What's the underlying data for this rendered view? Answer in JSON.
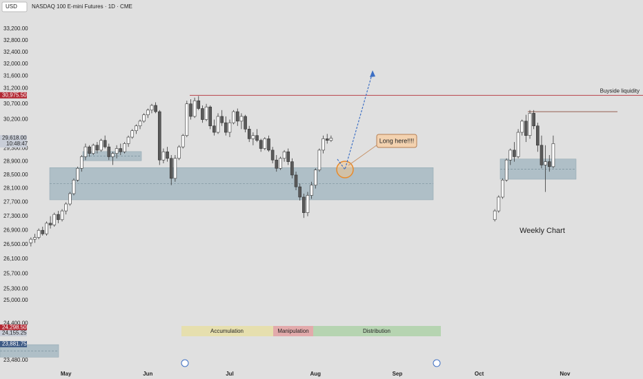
{
  "chart_data": {
    "type": "candlestick",
    "title": "NASDAQ 100 E-mini Futures · 1D · CME",
    "currency": "USD",
    "log_scale": true,
    "grid": false,
    "up_color": "#ffffff",
    "down_color": "#5a5a5a",
    "wick_color": "#333333",
    "ylim": [
      23480,
      33200
    ],
    "yticks": [
      {
        "value": 33200,
        "label": "33,200.00"
      },
      {
        "value": 32800,
        "label": "32,800.00"
      },
      {
        "value": 32400,
        "label": "32,400.00"
      },
      {
        "value": 32000,
        "label": "32,000.00"
      },
      {
        "value": 31600,
        "label": "31,600.00"
      },
      {
        "value": 31200,
        "label": "31,200.00"
      },
      {
        "value": 30700,
        "label": "30,700.00"
      },
      {
        "value": 30200,
        "label": "30,200.00"
      },
      {
        "value": 29300,
        "label": "29,300.00"
      },
      {
        "value": 28900,
        "label": "28,900.00"
      },
      {
        "value": 28500,
        "label": "28,500.00"
      },
      {
        "value": 28100,
        "label": "28,100.00"
      },
      {
        "value": 27700,
        "label": "27,700.00"
      },
      {
        "value": 27300,
        "label": "27,300.00"
      },
      {
        "value": 26900,
        "label": "26,900.00"
      },
      {
        "value": 26500,
        "label": "26,500.00"
      },
      {
        "value": 26100,
        "label": "26,100.00"
      },
      {
        "value": 25700,
        "label": "25,700.00"
      },
      {
        "value": 25300,
        "label": "25,300.00"
      },
      {
        "value": 25000,
        "label": "25,000.00"
      },
      {
        "value": 24400,
        "label": "24,400.00"
      },
      {
        "value": 23480,
        "label": "23,480.00"
      }
    ],
    "categories": [
      null,
      null,
      null,
      null,
      null,
      null,
      null,
      null,
      null,
      "May",
      null,
      null,
      null,
      null,
      null,
      null,
      null,
      null,
      null,
      null,
      null,
      null,
      null,
      null,
      null,
      null,
      null,
      null,
      null,
      null,
      "Jun",
      null,
      null,
      null,
      null,
      null,
      null,
      null,
      null,
      null,
      null,
      null,
      null,
      null,
      null,
      null,
      null,
      null,
      null,
      null,
      null,
      "Jul",
      null,
      null,
      null,
      null,
      null,
      null,
      null,
      null,
      null,
      null,
      null,
      null,
      null,
      null,
      null,
      null,
      null,
      null,
      null,
      null,
      null,
      "Aug",
      null,
      null,
      null,
      null,
      null,
      null,
      null,
      null,
      null,
      null,
      null,
      null,
      null,
      null,
      null,
      null,
      null,
      null,
      null,
      null,
      "Sep",
      null,
      null,
      null,
      null,
      null,
      null,
      null,
      null,
      null,
      null,
      null,
      null,
      null,
      null,
      null,
      null,
      null,
      null,
      null,
      null,
      "Oct",
      null,
      null,
      null,
      null,
      null,
      null,
      null,
      null,
      null,
      null,
      null,
      null,
      null,
      null,
      null,
      null,
      null,
      null,
      null,
      null,
      null,
      "Nov",
      null,
      null,
      null,
      null,
      null,
      null,
      null,
      null,
      null,
      null,
      null,
      null,
      null,
      null,
      null,
      null,
      null,
      null
    ],
    "candles": [
      [
        26550,
        26700,
        26450,
        26650
      ],
      [
        26650,
        26800,
        26550,
        26700
      ],
      [
        26700,
        26950,
        26650,
        26900
      ],
      [
        26900,
        27000,
        26750,
        26800
      ],
      [
        26800,
        27150,
        26750,
        27100
      ],
      [
        27100,
        27300,
        26950,
        27050
      ],
      [
        27050,
        27400,
        27000,
        27350
      ],
      [
        27350,
        27450,
        27100,
        27200
      ],
      [
        27200,
        27500,
        27150,
        27450
      ],
      [
        27450,
        27700,
        27350,
        27650
      ],
      [
        27650,
        28000,
        27600,
        27950
      ],
      [
        27950,
        28400,
        27900,
        28350
      ],
      [
        28350,
        28750,
        28300,
        28700
      ],
      [
        28700,
        29100,
        28600,
        29050
      ],
      [
        29050,
        29450,
        28950,
        29350
      ],
      [
        29350,
        29400,
        29050,
        29150
      ],
      [
        29150,
        29450,
        29100,
        29400
      ],
      [
        29400,
        29500,
        29150,
        29250
      ],
      [
        29250,
        29600,
        29200,
        29550
      ],
      [
        29550,
        29700,
        29300,
        29350
      ],
      [
        29350,
        29450,
        28950,
        29050
      ],
      [
        29050,
        29200,
        28800,
        29150
      ],
      [
        29150,
        29400,
        29000,
        29300
      ],
      [
        29300,
        29450,
        29100,
        29200
      ],
      [
        29200,
        29500,
        29150,
        29450
      ],
      [
        29450,
        29700,
        29350,
        29650
      ],
      [
        29650,
        29900,
        29600,
        29850
      ],
      [
        29850,
        30050,
        29750,
        30000
      ],
      [
        30000,
        30200,
        29900,
        30150
      ],
      [
        30150,
        30400,
        30100,
        30350
      ],
      [
        30350,
        30550,
        30250,
        30500
      ],
      [
        30500,
        30700,
        30400,
        30650
      ],
      [
        30650,
        30750,
        30400,
        30450
      ],
      [
        30450,
        30500,
        28800,
        28950
      ],
      [
        28950,
        29300,
        28850,
        29200
      ],
      [
        29200,
        29350,
        28900,
        29000
      ],
      [
        29000,
        29100,
        28200,
        28400
      ],
      [
        28400,
        29100,
        28300,
        29000
      ],
      [
        29000,
        29400,
        28950,
        29350
      ],
      [
        29350,
        29750,
        29300,
        29700
      ],
      [
        29700,
        30800,
        29650,
        30700
      ],
      [
        30700,
        30850,
        30200,
        30300
      ],
      [
        30300,
        30900,
        30250,
        30800
      ],
      [
        30800,
        30950,
        30500,
        30550
      ],
      [
        30550,
        30650,
        30100,
        30200
      ],
      [
        30200,
        30700,
        30150,
        30600
      ],
      [
        30600,
        30650,
        29900,
        30000
      ],
      [
        30000,
        30200,
        29700,
        29800
      ],
      [
        29800,
        30400,
        29750,
        30300
      ],
      [
        30300,
        30500,
        30000,
        30100
      ],
      [
        30100,
        30300,
        29700,
        29800
      ],
      [
        29800,
        30200,
        29650,
        30100
      ],
      [
        30100,
        30500,
        30050,
        30450
      ],
      [
        30450,
        30550,
        30000,
        30150
      ],
      [
        30150,
        30400,
        29900,
        30300
      ],
      [
        30300,
        30350,
        29800,
        29900
      ],
      [
        29900,
        30000,
        29500,
        29600
      ],
      [
        29600,
        29800,
        29400,
        29700
      ],
      [
        29700,
        29900,
        29500,
        29550
      ],
      [
        29550,
        29600,
        29200,
        29300
      ],
      [
        29300,
        29650,
        29250,
        29600
      ],
      [
        29600,
        29700,
        29200,
        29250
      ],
      [
        29250,
        29350,
        28850,
        28950
      ],
      [
        28950,
        29100,
        28600,
        28700
      ],
      [
        28700,
        29050,
        28650,
        29000
      ],
      [
        29000,
        29250,
        28900,
        29200
      ],
      [
        29200,
        29300,
        28800,
        28900
      ],
      [
        28900,
        29000,
        28400,
        28500
      ],
      [
        28500,
        28600,
        28050,
        28150
      ],
      [
        28150,
        28250,
        27750,
        27850
      ],
      [
        27850,
        27950,
        27250,
        27400
      ],
      [
        27400,
        28000,
        27300,
        27900
      ],
      [
        27900,
        28300,
        27800,
        28200
      ],
      [
        28200,
        28700,
        28100,
        28650
      ],
      [
        28650,
        29300,
        28600,
        29250
      ],
      [
        29250,
        29700,
        29150,
        29600
      ],
      [
        29600,
        29750,
        29450,
        29550
      ],
      [
        29550,
        29700,
        29500,
        29618
      ],
      null,
      null,
      null,
      null,
      null,
      null,
      null,
      null,
      null,
      null,
      null,
      null,
      null,
      null,
      null,
      null,
      null,
      null,
      null,
      null,
      null,
      null,
      null,
      null,
      null,
      null,
      null,
      null,
      null,
      null,
      null,
      null,
      null,
      null,
      null,
      null,
      null,
      null,
      null,
      null,
      null,
      [
        27200,
        27500,
        27150,
        27450
      ],
      [
        27450,
        27900,
        27400,
        27850
      ],
      [
        27850,
        28400,
        27800,
        28350
      ],
      [
        28350,
        29000,
        28300,
        28950
      ],
      [
        28950,
        29300,
        28800,
        29250
      ],
      [
        29250,
        29500,
        28900,
        29050
      ],
      [
        29050,
        29900,
        29000,
        29800
      ],
      [
        29800,
        30200,
        29700,
        30150
      ],
      [
        30150,
        30350,
        29500,
        29700
      ],
      [
        29700,
        30500,
        29600,
        30400
      ],
      [
        30400,
        30500,
        29900,
        30000
      ],
      [
        30000,
        30100,
        29200,
        29400
      ],
      [
        29400,
        29700,
        28700,
        28800
      ],
      [
        28800,
        29400,
        28000,
        28900
      ],
      [
        28900,
        29100,
        28600,
        28750
      ],
      [
        28750,
        29700,
        28700,
        29450
      ],
      null,
      null,
      null,
      null,
      null,
      null,
      null,
      null,
      null,
      null,
      null,
      null,
      null,
      null,
      null,
      null,
      null,
      null,
      null,
      null,
      null
    ],
    "levels": [
      {
        "value": 30975.5,
        "label": "Buyside liquidity",
        "color": "#b22833"
      },
      {
        "value": 30450,
        "color": "#8a4a3a"
      }
    ],
    "zones": [
      {
        "top": 28720,
        "bottom": 27770,
        "color": "#9fb4bf"
      },
      {
        "top": 29207,
        "bottom": 28930,
        "color": "#9fb4bf"
      },
      {
        "top": 28980,
        "bottom": 28375,
        "color": "#9fb4bf"
      },
      {
        "top": 23870,
        "bottom": 23560,
        "color": "#9fb4bf"
      }
    ],
    "price_badges": [
      {
        "value": 30975.5,
        "label": "30,975.50",
        "color": "#b22833"
      },
      {
        "value": 29618,
        "label": "29,618.00",
        "sub": "10:48:47",
        "color": "#c9ced8"
      },
      {
        "value": 24298.5,
        "label": "24,298.50",
        "color": "#b22833"
      },
      {
        "value": 24155.25,
        "label": "24,155.25",
        "color": "#c9ced8"
      },
      {
        "value": 23881.75,
        "label": "23,881.75",
        "color": "#3d5a85"
      }
    ],
    "annotations": {
      "callout": "Long here!!!!",
      "weekly": "Weekly Chart"
    },
    "phases": [
      "Accumulation",
      "Manipulation",
      "Distribution"
    ]
  }
}
